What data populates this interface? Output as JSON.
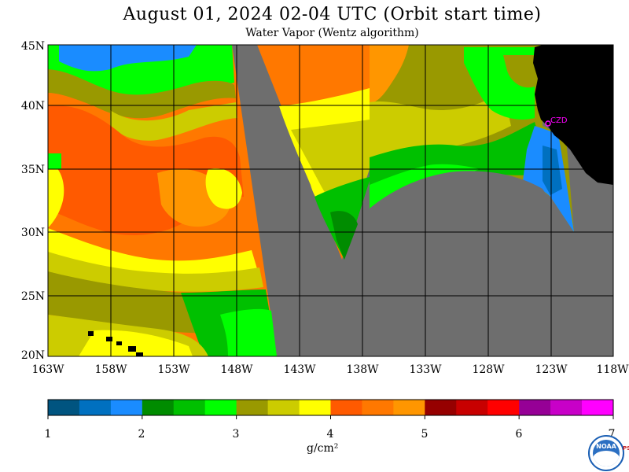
{
  "title": "August 01, 2024  02-04 UTC  (Orbit start time)",
  "subtitle": "Water Vapor (Wentz algorithm)",
  "lat_labels": [
    "45N",
    "40N",
    "35N",
    "30N",
    "25N",
    "20N"
  ],
  "lon_labels": [
    "163W",
    "158W",
    "153W",
    "148W",
    "143W",
    "138W",
    "133W",
    "128W",
    "123W",
    "118W"
  ],
  "station_label": "CZD",
  "colorbar": {
    "colors": [
      "#005480",
      "#0070c0",
      "#1a8cff",
      "#008c00",
      "#00c000",
      "#00ff00",
      "#999900",
      "#cccc00",
      "#ffff00",
      "#ff5a00",
      "#ff7800",
      "#ff9600",
      "#960000",
      "#c80000",
      "#ff0000",
      "#960096",
      "#c800c8",
      "#ff00ff"
    ],
    "tick_labels": [
      "1",
      "2",
      "3",
      "4",
      "5",
      "6",
      "7"
    ]
  },
  "unit_label": "g/cm²",
  "logo": {
    "text": "NOAA",
    "side_text": "PSL"
  }
}
